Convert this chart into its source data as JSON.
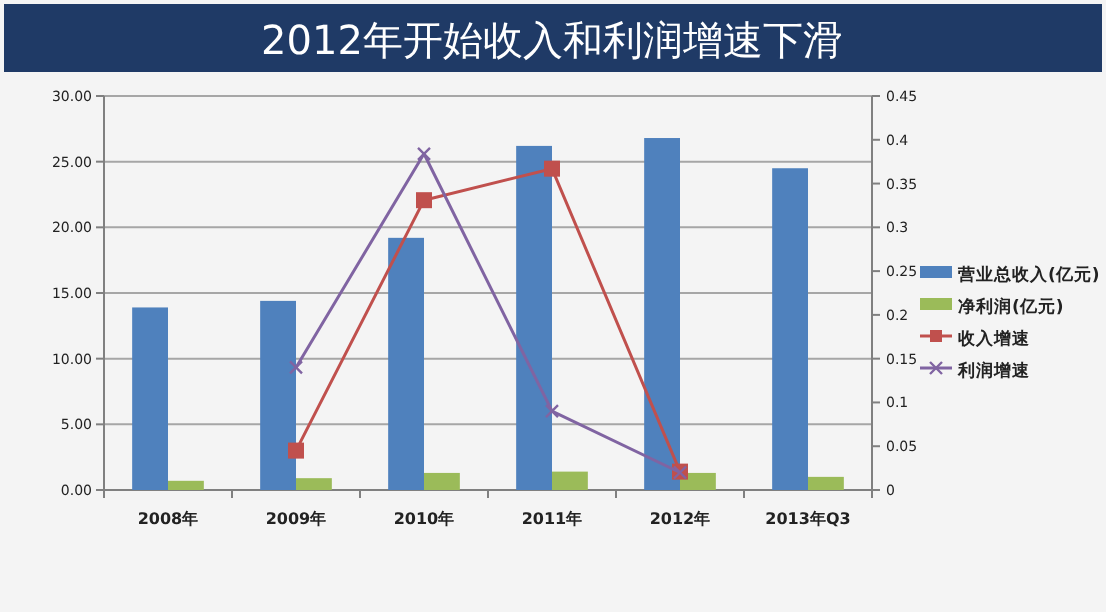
{
  "chart_data": {
    "type": "bar",
    "title": "2012年开始收入和利润增速下滑",
    "categories": [
      "2008年",
      "2009年",
      "2010年",
      "2011年",
      "2012年",
      "2013年Q3"
    ],
    "series": [
      {
        "name": "营业总收入(亿元)",
        "color": "#4f81bd",
        "values": [
          13.9,
          14.4,
          19.2,
          26.2,
          26.8,
          24.5
        ]
      },
      {
        "name": "净利润(亿元)",
        "color": "#9bbb59",
        "values": [
          0.7,
          0.9,
          1.3,
          1.4,
          1.3,
          1.0
        ]
      },
      {
        "name": "收入增速",
        "type": "line",
        "axis": "y2",
        "marker": "square",
        "color": "#c0504d",
        "values": [
          null,
          0.045,
          0.331,
          0.367,
          0.021,
          null
        ]
      },
      {
        "name": "利润增速",
        "type": "line",
        "axis": "y2",
        "marker": "cross",
        "color": "#8064a2",
        "values": [
          null,
          0.14,
          0.384,
          0.09,
          0.02,
          null
        ]
      }
    ],
    "ylim": [
      0,
      30
    ],
    "yticks": [
      {
        "value": 0,
        "label": "0.00"
      },
      {
        "value": 5,
        "label": "5.00"
      },
      {
        "value": 10,
        "label": "10.00"
      },
      {
        "value": 15,
        "label": "15.00"
      },
      {
        "value": 20,
        "label": "20.00"
      },
      {
        "value": 25,
        "label": "25.00"
      },
      {
        "value": 30,
        "label": "30.00"
      }
    ],
    "y2lim": [
      0,
      0.45
    ],
    "y2ticks": [
      0,
      0.05,
      0.1,
      0.15,
      0.2,
      0.25,
      0.3,
      0.35,
      0.4,
      0.45
    ],
    "grid": "y",
    "legend": "right"
  }
}
